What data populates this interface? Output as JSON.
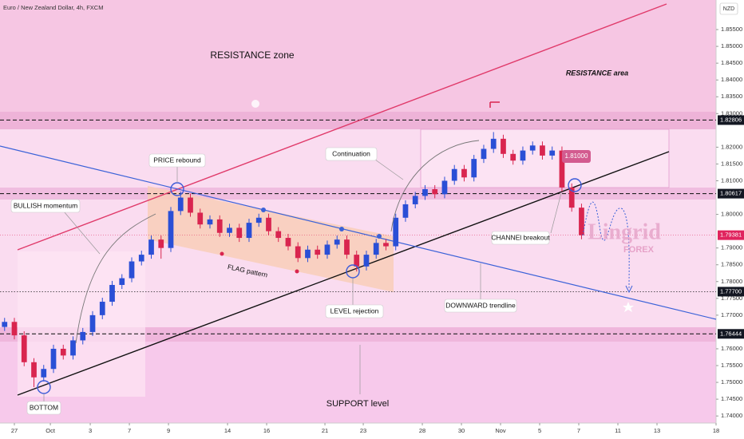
{
  "chart_data": {
    "type": "candlestick",
    "title": "Euro / New Zealand Dollar, 4h, FXCM",
    "currency": "NZD",
    "up_color": "#2a4fd6",
    "down_color": "#d9254f",
    "xlim": [
      -0.735,
      35.88
    ],
    "ylim": [
      1.7379,
      1.8638
    ],
    "xticks": [
      {
        "value": 0,
        "label": "27"
      },
      {
        "value": 1.84,
        "label": "Oct"
      },
      {
        "value": 3.88,
        "label": "3"
      },
      {
        "value": 5.88,
        "label": "7"
      },
      {
        "value": 7.88,
        "label": "9"
      },
      {
        "value": 10.9,
        "label": "14"
      },
      {
        "value": 12.9,
        "label": "16"
      },
      {
        "value": 15.88,
        "label": "21"
      },
      {
        "value": 17.84,
        "label": "23"
      },
      {
        "value": 20.86,
        "label": "28"
      },
      {
        "value": 22.86,
        "label": "30"
      },
      {
        "value": 24.86,
        "label": "Nov"
      },
      {
        "value": 26.86,
        "label": "5"
      },
      {
        "value": 28.86,
        "label": "7"
      },
      {
        "value": 30.86,
        "label": "11"
      },
      {
        "value": 32.86,
        "label": "13"
      },
      {
        "value": 35.88,
        "label": "18"
      }
    ],
    "yticks": [
      {
        "value": 1.855,
        "label": "1.85500"
      },
      {
        "value": 1.85,
        "label": "1.85000"
      },
      {
        "value": 1.845,
        "label": "1.84500"
      },
      {
        "value": 1.84,
        "label": "1.84000"
      },
      {
        "value": 1.835,
        "label": "1.83500"
      },
      {
        "value": 1.83,
        "label": "1.83000"
      },
      {
        "value": 1.82,
        "label": "1.82000"
      },
      {
        "value": 1.815,
        "label": "1.81500"
      },
      {
        "value": 1.81,
        "label": "1.81000"
      },
      {
        "value": 1.8,
        "label": "1.80000"
      },
      {
        "value": 1.79,
        "label": "1.79000"
      },
      {
        "value": 1.785,
        "label": "1.78500"
      },
      {
        "value": 1.78,
        "label": "1.78000"
      },
      {
        "value": 1.775,
        "label": "1.77500"
      },
      {
        "value": 1.77,
        "label": "1.77000"
      },
      {
        "value": 1.76,
        "label": "1.76000"
      },
      {
        "value": 1.755,
        "label": "1.75500"
      },
      {
        "value": 1.75,
        "label": "1.75000"
      },
      {
        "value": 1.745,
        "label": "1.74500"
      },
      {
        "value": 1.74,
        "label": "1.74000"
      }
    ],
    "levels": [
      1.82806,
      1.80617,
      {
        "value": 1.777,
        "label": "1.77700"
      },
      1.76444
    ],
    "current_price": 1.79381,
    "current_color": "#e0245e",
    "x": [
      -0.5,
      0,
      0.5,
      1,
      1.5,
      2,
      2.5,
      3,
      3.5,
      4,
      4.5,
      5,
      5.5,
      6,
      6.5,
      7,
      7.5,
      8,
      8.5,
      9,
      9.5,
      10,
      10.5,
      11,
      11.5,
      12,
      12.5,
      13,
      13.5,
      14,
      14.5,
      15,
      15.5,
      16,
      16.5,
      17,
      17.5,
      18,
      18.5,
      19,
      19.5,
      20,
      20.5,
      21,
      21.5,
      22,
      22.5,
      23,
      23.5,
      24,
      24.5,
      25,
      25.5,
      26,
      26.5,
      27,
      27.5,
      28,
      28.5,
      29
    ],
    "open": [
      1.7665,
      1.768,
      1.764,
      1.756,
      1.7515,
      1.754,
      1.76,
      1.758,
      1.7625,
      1.765,
      1.77,
      1.774,
      1.779,
      1.781,
      1.786,
      1.788,
      1.7925,
      1.79,
      1.801,
      1.805,
      1.8005,
      1.797,
      1.7985,
      1.7945,
      1.796,
      1.793,
      1.7975,
      1.799,
      1.795,
      1.793,
      1.7905,
      1.787,
      1.7895,
      1.788,
      1.791,
      1.7925,
      1.788,
      1.7845,
      1.788,
      1.7915,
      1.7905,
      1.799,
      1.803,
      1.8055,
      1.8075,
      1.806,
      1.81,
      1.8135,
      1.811,
      1.8165,
      1.8195,
      1.8225,
      1.818,
      1.816,
      1.819,
      1.8205,
      1.8175,
      1.819,
      1.808,
      1.802
    ],
    "high": [
      1.7692,
      1.7692,
      1.7652,
      1.7572,
      1.7552,
      1.7612,
      1.7612,
      1.7637,
      1.7662,
      1.7712,
      1.7752,
      1.7802,
      1.7822,
      1.7872,
      1.7892,
      1.7937,
      1.7937,
      1.8022,
      1.8068,
      1.8062,
      1.8017,
      1.7997,
      1.7997,
      1.7972,
      1.7972,
      1.7987,
      1.8002,
      1.8002,
      1.7962,
      1.7942,
      1.7917,
      1.7907,
      1.7907,
      1.7922,
      1.7937,
      1.7937,
      1.7892,
      1.7892,
      1.7927,
      1.7927,
      1.8002,
      1.8042,
      1.8067,
      1.8087,
      1.8087,
      1.8112,
      1.8147,
      1.8147,
      1.8177,
      1.8207,
      1.8245,
      1.8237,
      1.8192,
      1.8202,
      1.8217,
      1.8217,
      1.8202,
      1.8202,
      1.8092,
      1.8032
    ],
    "low": [
      1.7653,
      1.7628,
      1.7548,
      1.7486,
      1.7503,
      1.7528,
      1.7568,
      1.7568,
      1.7613,
      1.7638,
      1.7688,
      1.7728,
      1.7778,
      1.7798,
      1.7848,
      1.7868,
      1.7868,
      1.7888,
      1.7998,
      1.7993,
      1.7958,
      1.7958,
      1.7933,
      1.7933,
      1.7918,
      1.7918,
      1.7963,
      1.7938,
      1.7918,
      1.7893,
      1.7858,
      1.7858,
      1.7868,
      1.7868,
      1.7898,
      1.7868,
      1.783,
      1.7833,
      1.7868,
      1.7893,
      1.7893,
      1.7978,
      1.8018,
      1.8043,
      1.8048,
      1.8048,
      1.8088,
      1.8098,
      1.8098,
      1.8153,
      1.8183,
      1.8168,
      1.8148,
      1.8148,
      1.8178,
      1.8163,
      1.8163,
      1.8068,
      1.8008,
      1.7926
    ],
    "close": [
      1.768,
      1.764,
      1.756,
      1.7515,
      1.754,
      1.76,
      1.758,
      1.7625,
      1.765,
      1.77,
      1.774,
      1.779,
      1.781,
      1.786,
      1.788,
      1.7925,
      1.79,
      1.801,
      1.805,
      1.8005,
      1.797,
      1.7985,
      1.7945,
      1.796,
      1.793,
      1.7975,
      1.799,
      1.795,
      1.793,
      1.7905,
      1.787,
      1.7895,
      1.788,
      1.791,
      1.7925,
      1.788,
      1.7845,
      1.788,
      1.7915,
      1.7905,
      1.799,
      1.803,
      1.8055,
      1.8075,
      1.806,
      1.81,
      1.8135,
      1.811,
      1.8165,
      1.8195,
      1.8225,
      1.818,
      1.816,
      1.819,
      1.8205,
      1.8175,
      1.819,
      1.808,
      1.802,
      1.7938
    ],
    "annotations": {
      "resistance_zone": "RESISTANCE zone",
      "resistance_area": "RESISTANCE area",
      "price_rebound": "PRICE rebound",
      "bullish_momentum": "BULLISH momentum",
      "continuation": "Continuation",
      "flag_pattern": "FLAG pattern",
      "channel_breakout": "CHANNEl breakout",
      "level_rejection": "LEVEL rejection",
      "downward_trendline": "DOWNWARD trendline",
      "support_level": "SUPPORT level",
      "bottom": "BOTTOM",
      "target_price": "1.81000"
    }
  },
  "watermark": {
    "brand": "Lingrid",
    "sub": "FOREX"
  }
}
